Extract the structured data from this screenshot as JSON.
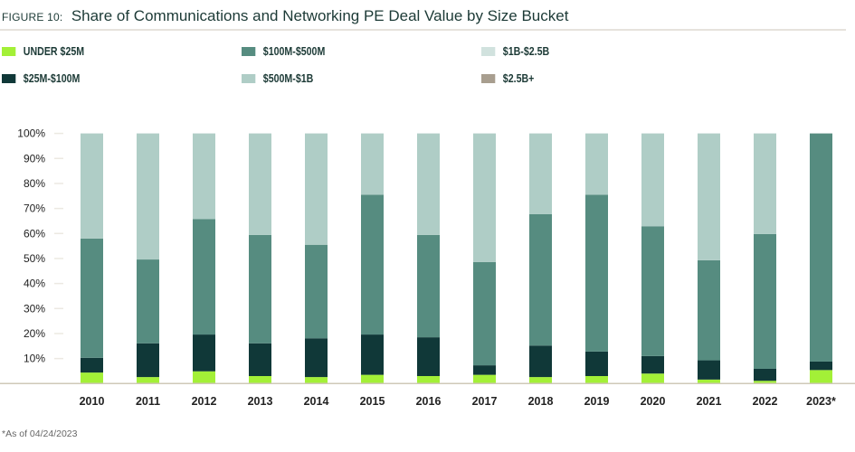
{
  "chart_data": {
    "type": "bar",
    "stacked": true,
    "title_prefix": "FIGURE 10:",
    "title": "Share of Communications and Networking PE Deal Value by Size Bucket",
    "xlabel": "",
    "ylabel": "",
    "ylim": [
      0,
      100
    ],
    "yticks": [
      "10%",
      "20%",
      "30%",
      "40%",
      "50%",
      "60%",
      "70%",
      "80%",
      "90%",
      "100%"
    ],
    "grid": false,
    "legend_position": "top",
    "categories": [
      "2010",
      "2011",
      "2012",
      "2013",
      "2014",
      "2015",
      "2016",
      "2017",
      "2018",
      "2019",
      "2020",
      "2021",
      "2022",
      "2023*"
    ],
    "series": [
      {
        "name": "UNDER $25M",
        "color": "#a3f037",
        "values": [
          4.4,
          2.6,
          4.9,
          3.0,
          2.6,
          3.5,
          3.0,
          3.5,
          2.6,
          3.0,
          4.0,
          1.6,
          1.1,
          5.4
        ]
      },
      {
        "name": "$25M-$100M",
        "color": "#103838",
        "values": [
          5.9,
          13.5,
          14.7,
          13.1,
          15.5,
          16.1,
          15.5,
          3.8,
          12.6,
          9.8,
          7.0,
          7.7,
          4.8,
          3.4
        ]
      },
      {
        "name": "$100M-$500M",
        "color": "#568c80",
        "values": [
          47.7,
          33.5,
          46.2,
          43.3,
          37.4,
          55.9,
          40.9,
          41.3,
          52.5,
          62.7,
          51.9,
          40.0,
          53.9,
          91.2
        ]
      },
      {
        "name": "$500M-$1B",
        "color": "#afcdc6",
        "values": [
          42.0,
          50.4,
          34.2,
          40.6,
          44.5,
          24.5,
          40.6,
          51.4,
          32.3,
          24.5,
          37.1,
          50.7,
          40.2,
          0
        ]
      },
      {
        "name": "$1B-$2.5B",
        "color": "#d1e2de",
        "values": [
          0,
          0,
          0,
          0,
          0,
          0,
          0,
          0,
          0,
          0,
          0,
          0,
          0,
          0
        ]
      },
      {
        "name": "$2.5B+",
        "color": "#a89e8f",
        "values": [
          0,
          0,
          0,
          0,
          0,
          0,
          0,
          0,
          0,
          0,
          0,
          0,
          0,
          0
        ]
      }
    ],
    "legend_order": [
      0,
      2,
      4,
      1,
      3,
      5
    ],
    "footnote": "*As of 04/24/2023"
  }
}
